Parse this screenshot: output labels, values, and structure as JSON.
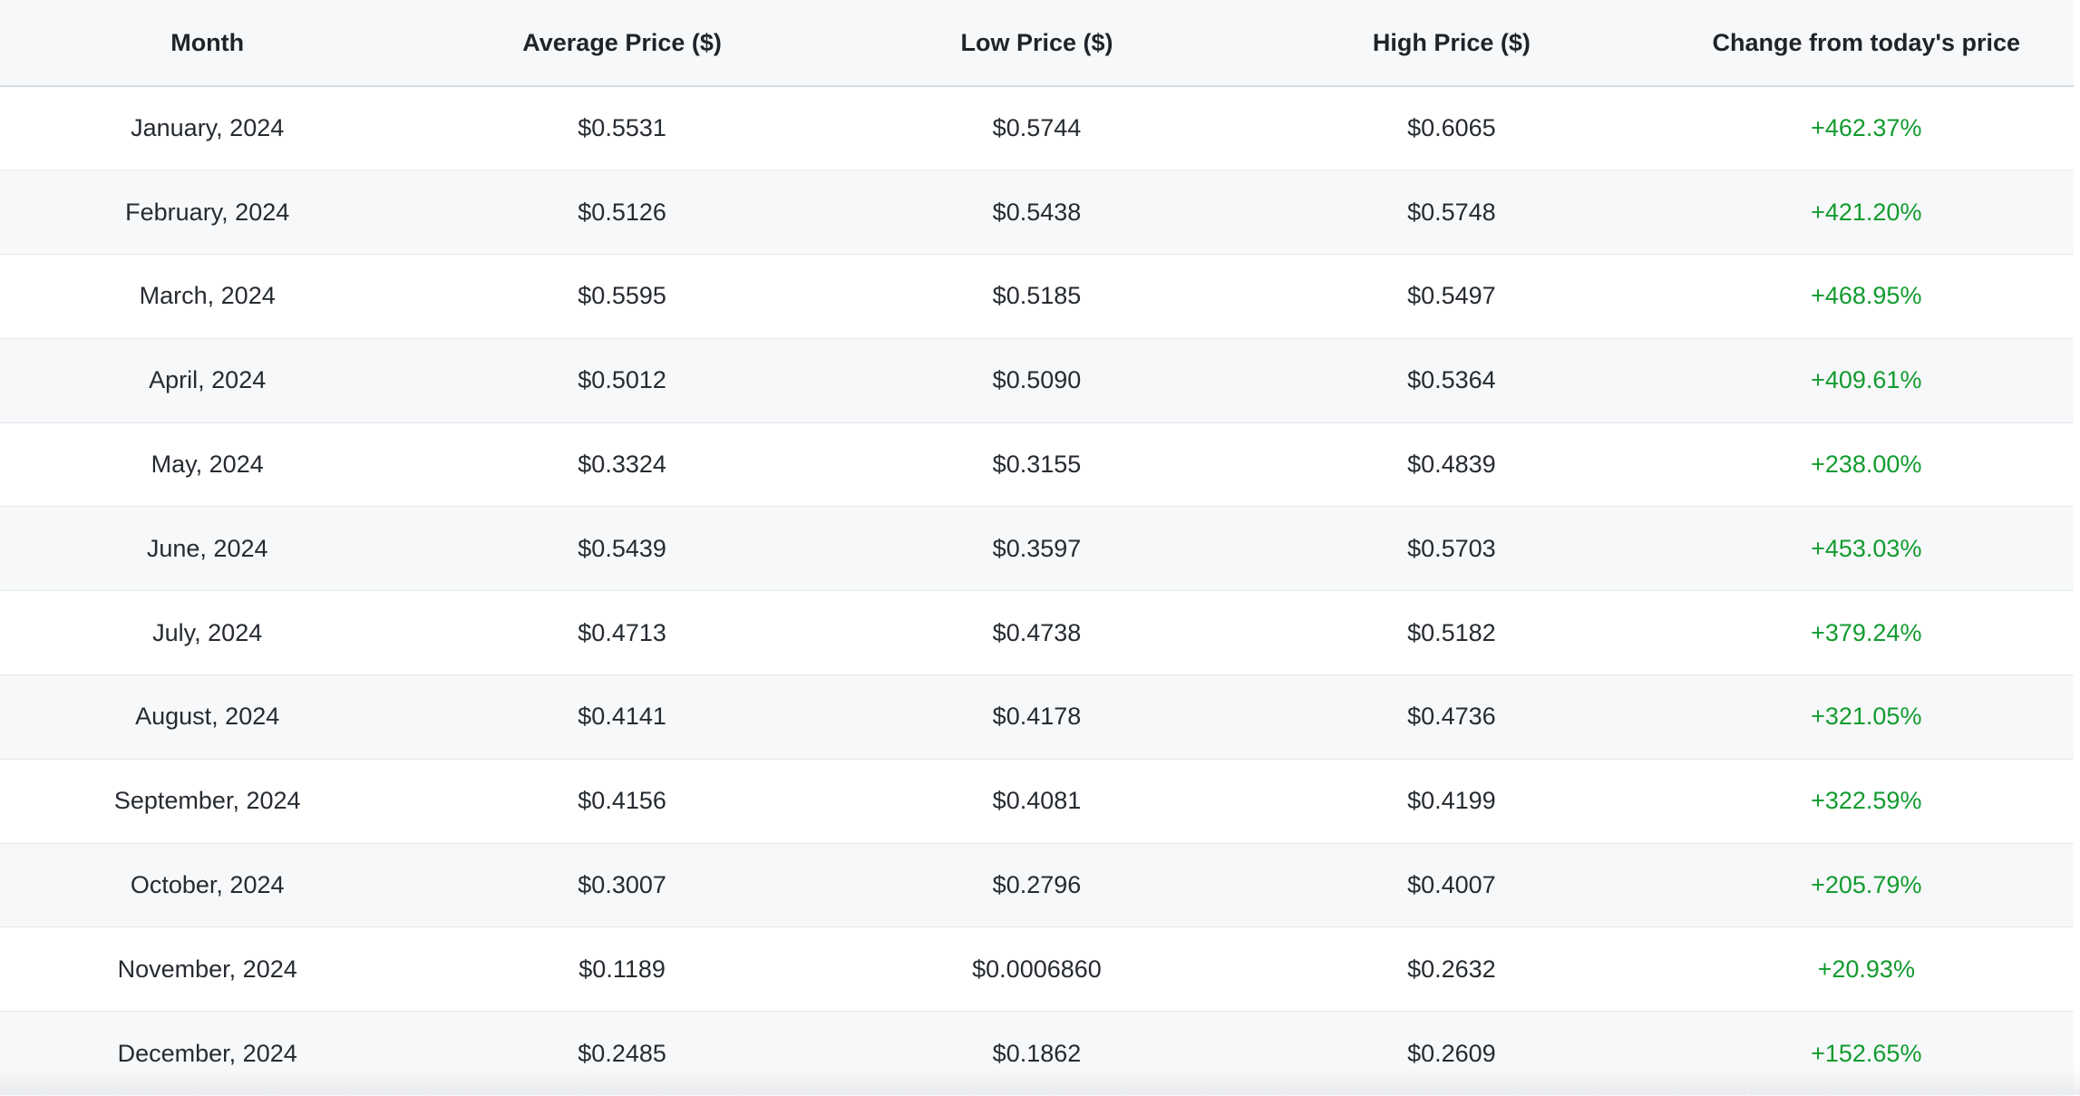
{
  "table": {
    "columns": [
      "Month",
      "Average Price ($)",
      "Low Price ($)",
      "High Price ($)",
      "Change from today's price"
    ],
    "rows": [
      {
        "month": "January, 2024",
        "avg": "$0.5531",
        "low": "$0.5744",
        "high": "$0.6065",
        "change": "+462.37%"
      },
      {
        "month": "February, 2024",
        "avg": "$0.5126",
        "low": "$0.5438",
        "high": "$0.5748",
        "change": "+421.20%"
      },
      {
        "month": "March, 2024",
        "avg": "$0.5595",
        "low": "$0.5185",
        "high": "$0.5497",
        "change": "+468.95%"
      },
      {
        "month": "April, 2024",
        "avg": "$0.5012",
        "low": "$0.5090",
        "high": "$0.5364",
        "change": "+409.61%"
      },
      {
        "month": "May, 2024",
        "avg": "$0.3324",
        "low": "$0.3155",
        "high": "$0.4839",
        "change": "+238.00%"
      },
      {
        "month": "June, 2024",
        "avg": "$0.5439",
        "low": "$0.3597",
        "high": "$0.5703",
        "change": "+453.03%"
      },
      {
        "month": "July, 2024",
        "avg": "$0.4713",
        "low": "$0.4738",
        "high": "$0.5182",
        "change": "+379.24%"
      },
      {
        "month": "August, 2024",
        "avg": "$0.4141",
        "low": "$0.4178",
        "high": "$0.4736",
        "change": "+321.05%"
      },
      {
        "month": "September, 2024",
        "avg": "$0.4156",
        "low": "$0.4081",
        "high": "$0.4199",
        "change": "+322.59%"
      },
      {
        "month": "October, 2024",
        "avg": "$0.3007",
        "low": "$0.2796",
        "high": "$0.4007",
        "change": "+205.79%"
      },
      {
        "month": "November, 2024",
        "avg": "$0.1189",
        "low": "$0.0006860",
        "high": "$0.2632",
        "change": "+20.93%"
      },
      {
        "month": "December, 2024",
        "avg": "$0.2485",
        "low": "$0.1862",
        "high": "$0.2609",
        "change": "+152.65%"
      }
    ]
  },
  "colors": {
    "positive_change": "#129b2f",
    "header_background": "#f7f8f9",
    "row_alt_background": "#f7f8f9"
  }
}
